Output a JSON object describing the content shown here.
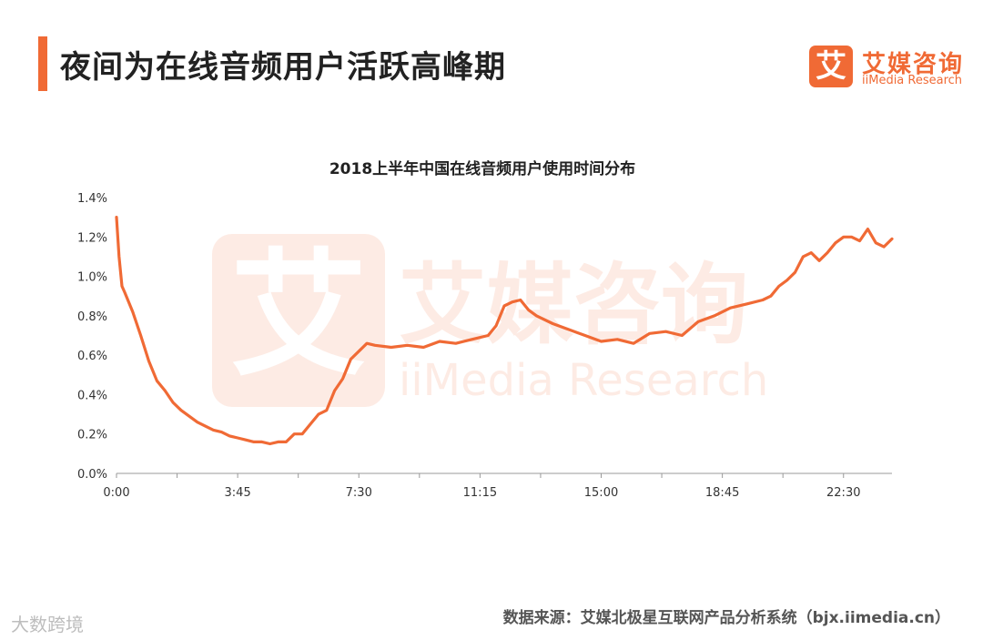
{
  "page": {
    "title": "夜间为在线音频用户活跃高峰期",
    "logo_icon_text": "艾",
    "logo_cn": "艾媒咨询",
    "logo_en": "iiMedia Research",
    "source": "数据来源：艾媒北极星互联网产品分析系统（bjx.iimedia.cn）",
    "corner_mark": "大数跨境",
    "watermark_icon": "艾",
    "watermark_cn": "艾媒咨询",
    "watermark_en": "iiMedia Research",
    "line_color": "#f06a35",
    "accent_color": "#f06a35"
  },
  "chart_data": {
    "type": "line",
    "title": "2018上半年中国在线音频用户使用时间分布",
    "xlabel": "",
    "ylabel": "",
    "x_tick_labels": [
      "0:00",
      "3:45",
      "7:30",
      "11:15",
      "15:00",
      "18:45",
      "22:30"
    ],
    "y_tick_labels": [
      "0.0%",
      "0.2%",
      "0.4%",
      "0.6%",
      "0.8%",
      "1.0%",
      "1.2%",
      "1.4%"
    ],
    "ylim": [
      0,
      1.4
    ],
    "y_unit": "%",
    "x_range_hours": [
      0,
      24
    ],
    "grid": false,
    "legend": "none",
    "series": [
      {
        "color": "#f06a35",
        "x_hours": [
          0.0,
          0.08,
          0.17,
          0.25,
          0.5,
          0.75,
          1.0,
          1.25,
          1.5,
          1.75,
          2.0,
          2.25,
          2.5,
          2.75,
          3.0,
          3.25,
          3.5,
          3.75,
          4.0,
          4.25,
          4.5,
          4.75,
          5.0,
          5.25,
          5.5,
          5.75,
          6.0,
          6.25,
          6.5,
          6.75,
          7.0,
          7.25,
          7.5,
          7.75,
          8.0,
          8.5,
          9.0,
          9.5,
          10.0,
          10.5,
          11.0,
          11.5,
          11.75,
          12.0,
          12.25,
          12.5,
          12.75,
          13.0,
          13.5,
          14.0,
          14.5,
          15.0,
          15.5,
          16.0,
          16.5,
          17.0,
          17.5,
          18.0,
          18.5,
          19.0,
          19.5,
          20.0,
          20.25,
          20.5,
          20.75,
          21.0,
          21.25,
          21.5,
          21.75,
          22.0,
          22.25,
          22.5,
          22.75,
          23.0,
          23.25,
          23.5,
          23.75,
          24.0
        ],
        "values": [
          1.3,
          1.1,
          0.95,
          0.92,
          0.82,
          0.7,
          0.57,
          0.47,
          0.42,
          0.36,
          0.32,
          0.29,
          0.26,
          0.24,
          0.22,
          0.21,
          0.19,
          0.18,
          0.17,
          0.16,
          0.16,
          0.15,
          0.16,
          0.16,
          0.2,
          0.2,
          0.25,
          0.3,
          0.32,
          0.42,
          0.48,
          0.58,
          0.62,
          0.66,
          0.65,
          0.64,
          0.65,
          0.64,
          0.67,
          0.66,
          0.68,
          0.7,
          0.75,
          0.85,
          0.87,
          0.88,
          0.83,
          0.8,
          0.76,
          0.73,
          0.7,
          0.67,
          0.68,
          0.66,
          0.71,
          0.72,
          0.7,
          0.77,
          0.8,
          0.84,
          0.86,
          0.88,
          0.9,
          0.95,
          0.98,
          1.02,
          1.1,
          1.12,
          1.08,
          1.12,
          1.17,
          1.2,
          1.2,
          1.18,
          1.24,
          1.17,
          1.15,
          1.19
        ]
      }
    ]
  }
}
